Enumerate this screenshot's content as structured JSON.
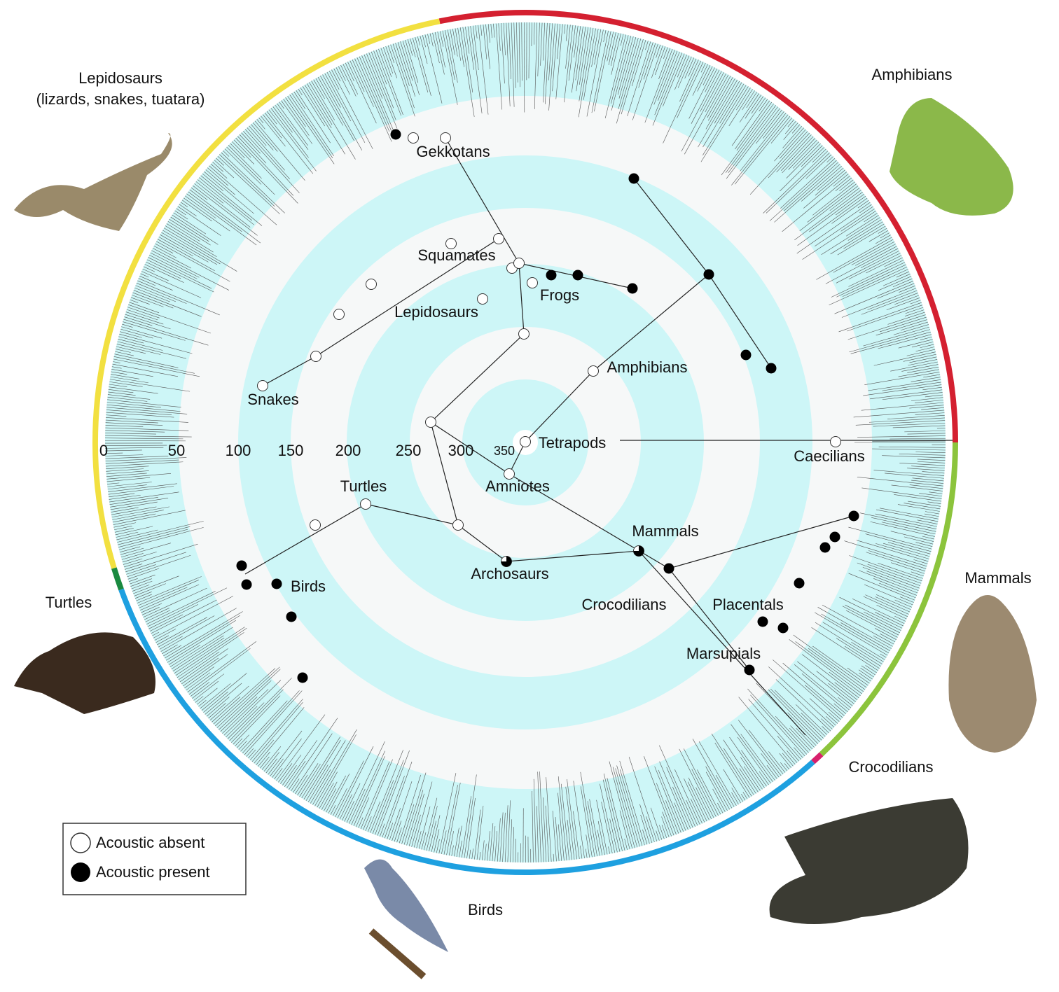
{
  "group_labels": [
    {
      "lines": [
        "Lepidosaurs",
        "(lizards, snakes, tuatara)"
      ]
    },
    {
      "lines": [
        "Amphibians"
      ]
    },
    {
      "lines": [
        "Mammals"
      ]
    },
    {
      "lines": [
        "Turtles"
      ]
    },
    {
      "lines": [
        "Crocodilians"
      ]
    },
    {
      "lines": [
        "Birds"
      ]
    }
  ],
  "clade_labels": [
    "Gekkotans",
    "Squamates",
    "Lepidosaurs",
    "Frogs",
    "Amphibians",
    "Snakes",
    "Tetrapods",
    "Caecilians",
    "Amniotes",
    "Turtles",
    "Mammals",
    "Birds",
    "Archosaurs",
    "Crocodilians",
    "Placentals",
    "Marsupials"
  ],
  "time_scale": [
    0,
    50,
    100,
    150,
    200,
    250,
    300,
    350
  ],
  "legend": [
    "Acoustic absent",
    "Acoustic present"
  ]
}
